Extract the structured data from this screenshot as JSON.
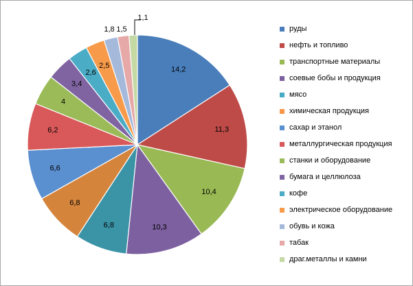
{
  "chart_data": {
    "type": "pie",
    "title": "",
    "series": [
      {
        "values": [
          14.2,
          11.3,
          10.4,
          10.3,
          6.8,
          6.8,
          6.6,
          6.2,
          4,
          3.4,
          2.6,
          2.5,
          1.8,
          1.5,
          1.1
        ]
      }
    ],
    "categories": [
      "руды",
      "нефть и топливо",
      "транспортные материалы",
      "соевые бобы и продукция",
      "мясо",
      "химическая продукция",
      "сахар и этанол",
      "металлургическая продукция",
      "станки и оборудование",
      "бумага и целлюлоза",
      "кофе",
      "электрическое оборудование",
      "обувь и кожа",
      "табак",
      "драг.металлы и камни"
    ],
    "data_labels": [
      "14,2",
      "11,3",
      "10,4",
      "10,3",
      "6,8",
      "6,8",
      "6,6",
      "6,2",
      "4",
      "3,4",
      "2,6",
      "2,5",
      "1,8",
      "1,5",
      "1,1"
    ],
    "colors": [
      "#4a7ebb",
      "#be4b48",
      "#98b954",
      "#7d60a0",
      "#46aac5",
      "#f79646",
      "#5a8fd0",
      "#d9595a",
      "#9bbb59",
      "#8064a2",
      "#4bacc6",
      "#f79b4b",
      "#a5b9db",
      "#e6a9a8",
      "#c5d9a4"
    ],
    "slice_colors": [
      "#4a7ebb",
      "#be4b48",
      "#98b954",
      "#7d60a0",
      "#3b93a6",
      "#d5843c",
      "#5a8fd0",
      "#d9595a",
      "#9bbb59",
      "#8064a2",
      "#4bacc6",
      "#f79b4b",
      "#a5b9db",
      "#e6a9a8",
      "#c5d9a4"
    ],
    "legend_position": "right",
    "start_angle": "top",
    "direction": "clockwise"
  }
}
